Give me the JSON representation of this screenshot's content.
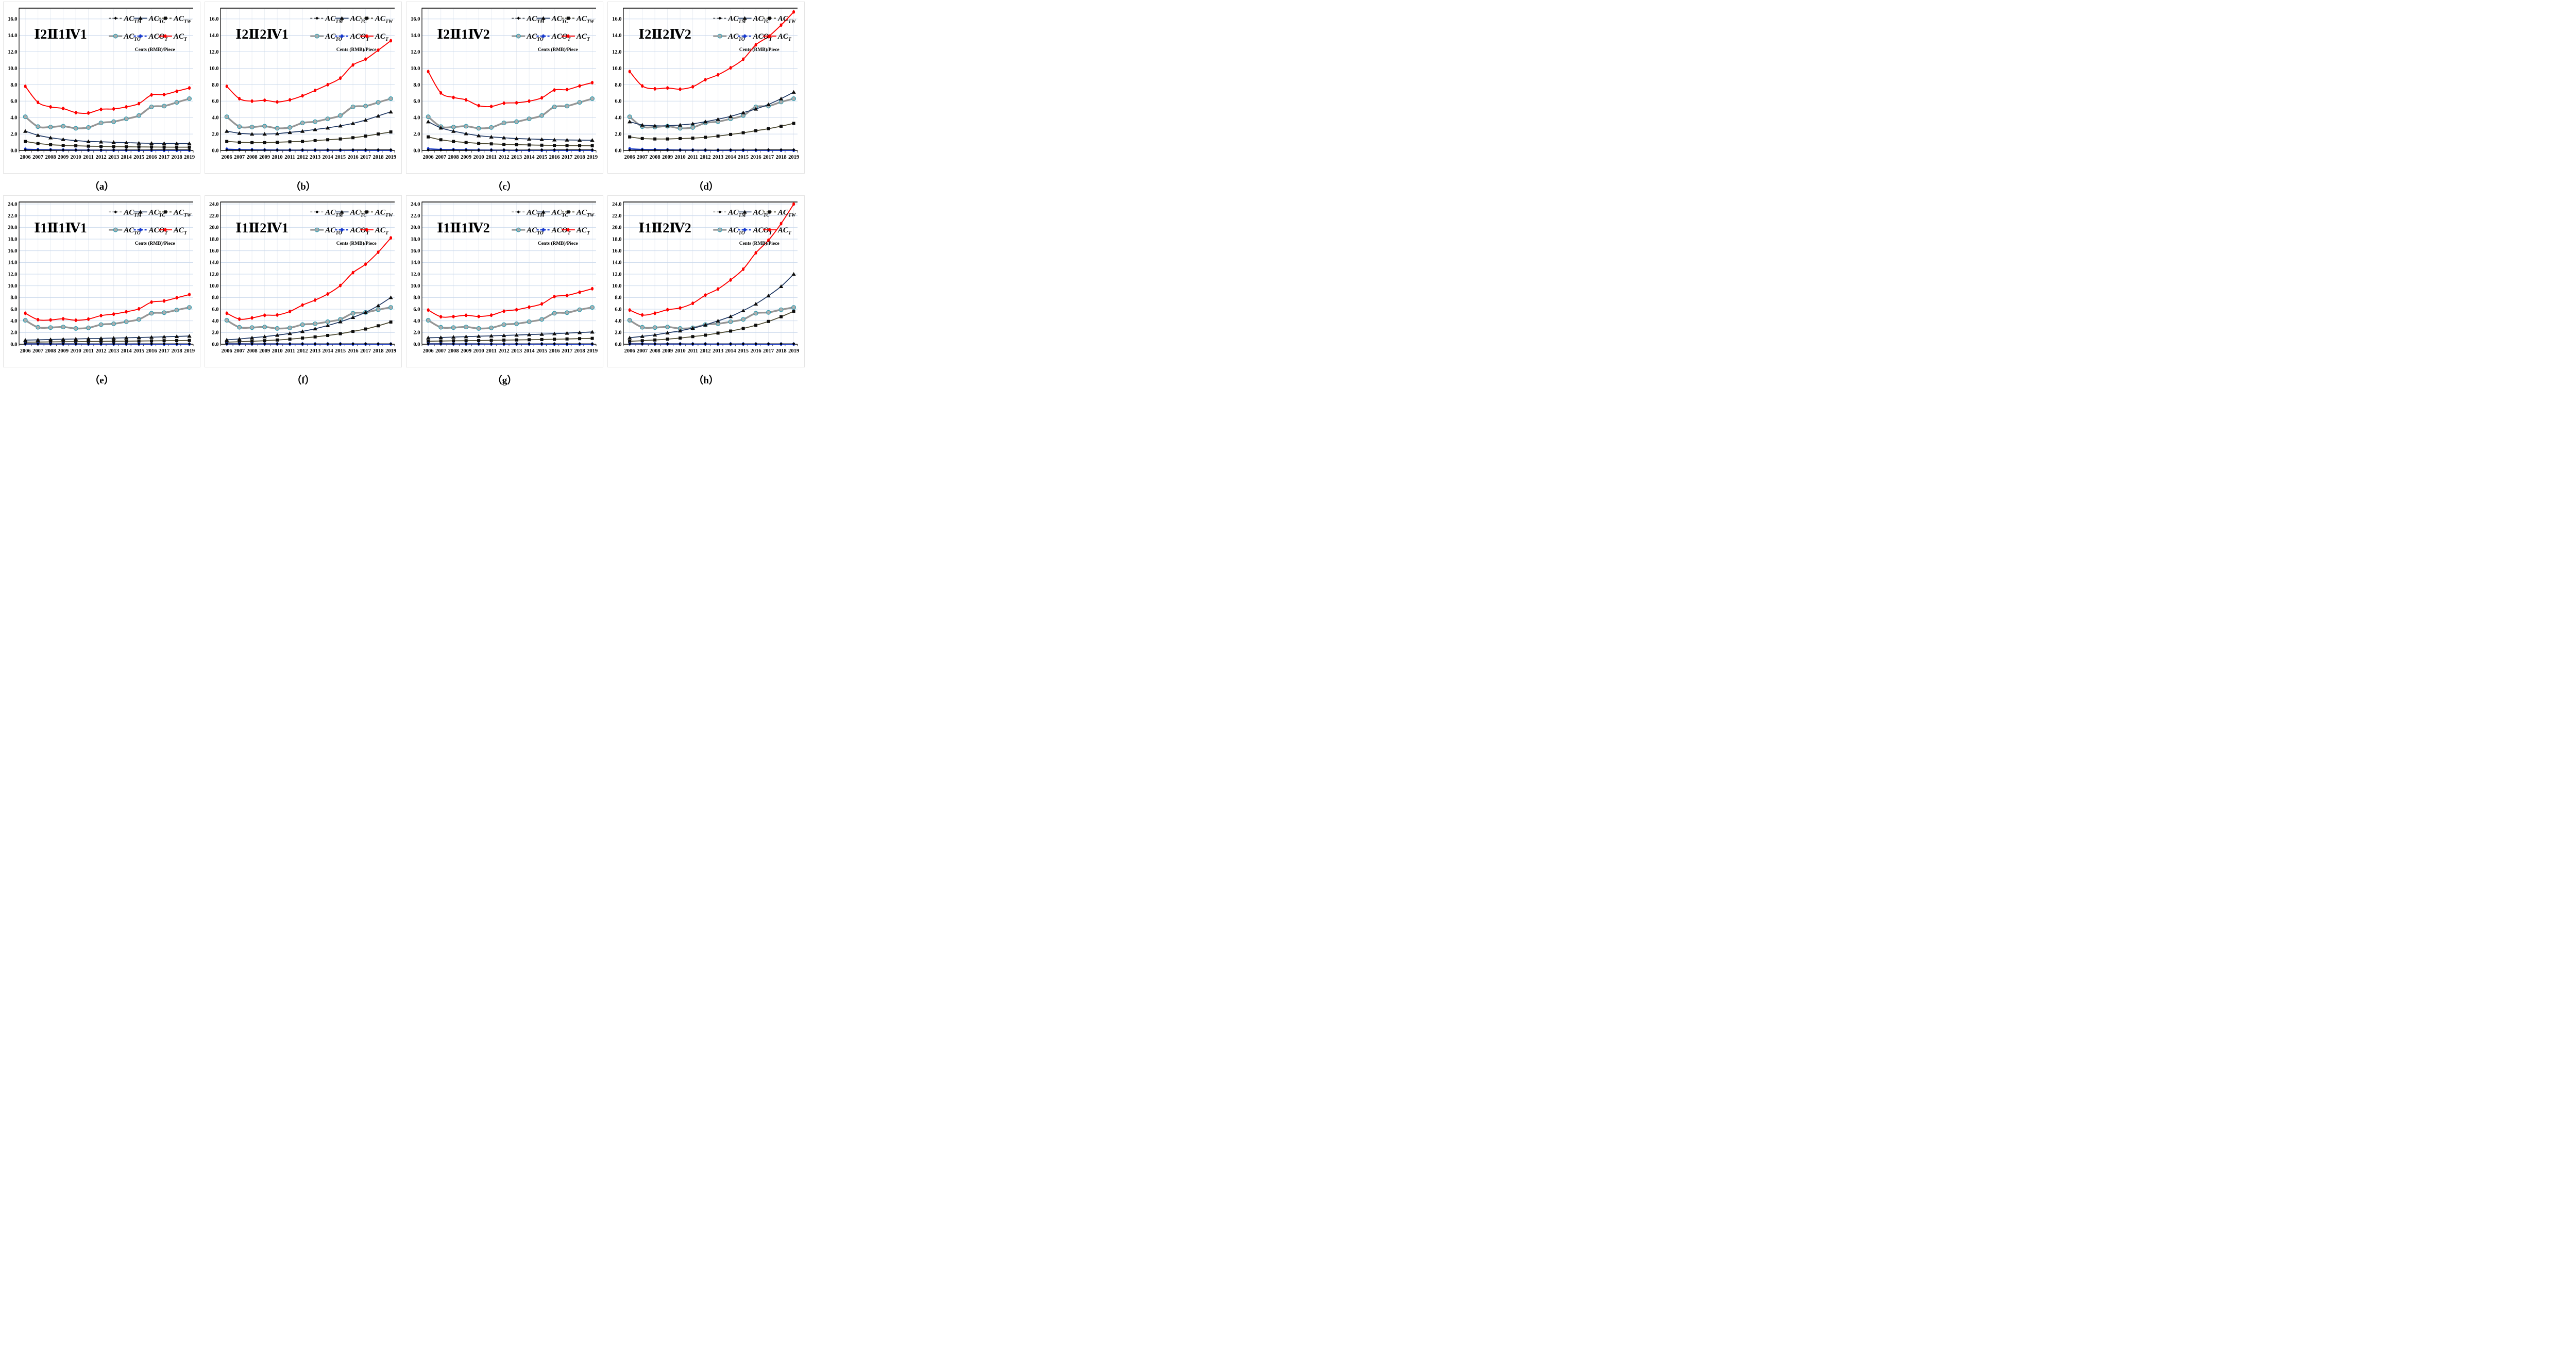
{
  "page": {
    "background": "#ffffff",
    "units_label": "Cents (RMB)/Piece"
  },
  "years": [
    "2006",
    "2007",
    "2008",
    "2009",
    "2010",
    "2011",
    "2012",
    "2013",
    "2014",
    "2015",
    "2016",
    "2017",
    "2018",
    "2019"
  ],
  "legend_order": [
    "AC_TM",
    "AC_TC",
    "AC_TW",
    "AC_TO",
    "ACO_T",
    "AC_T"
  ],
  "draw_order": [
    "AC_TO",
    "AC_TW",
    "AC_TC",
    "ACO_T",
    "AC_TM",
    "AC_T"
  ],
  "series_styles": {
    "AC_TM": {
      "base": "AC",
      "sub": "TM",
      "line_color": "#111111",
      "line_width": 1.2,
      "marker": "diamond",
      "marker_color": "#000000",
      "legend_dash": "4 3"
    },
    "AC_TC": {
      "base": "AC",
      "sub": "TC",
      "line_color": "#1f3864",
      "line_width": 1.7,
      "marker": "triangle",
      "marker_color": "#0d0d0d",
      "legend_dash": ""
    },
    "AC_TW": {
      "base": "AC",
      "sub": "TW",
      "line_color": "#4e4b33",
      "line_width": 1.8,
      "marker": "square",
      "marker_color": "#0d0d0d",
      "legend_dash": "4 3"
    },
    "AC_TO": {
      "base": "AC",
      "sub": "TO",
      "line_color": "#969696",
      "line_width": 3.4,
      "marker": "circle",
      "marker_color": "#adadad",
      "marker_stroke": "#2f9fb3",
      "legend_dash": ""
    },
    "ACO_T": {
      "base": "ACO",
      "sub": "T",
      "line_color": "#1437cf",
      "line_width": 2.2,
      "marker": "ellipse",
      "marker_color": "#1437cf",
      "legend_dash": "4 3"
    },
    "AC_T": {
      "base": "AC",
      "sub": "T",
      "line_color": "#ff0000",
      "line_width": 1.9,
      "marker": "ellipse",
      "marker_color": "#ff0000",
      "legend_dash": ""
    }
  },
  "grid_colors": {
    "h_grid": "#c9d8ec",
    "v_grid": "#e9edf3",
    "top_border": "#595959",
    "axis": "#000000"
  },
  "chart_data": [
    {
      "type": "line",
      "panel": "a",
      "caption": "（a）",
      "title": "Ⅰ2Ⅱ1Ⅳ1",
      "ylabel": "Cents (RMB)/Piece",
      "ylim": [
        0,
        17.3
      ],
      "ytick_max": 16,
      "ytick_step": 2,
      "grid": true,
      "legend_position": "top-right",
      "series": {
        "AC_TM": [
          0.05,
          0.05,
          0.05,
          0.05,
          0.05,
          0.05,
          0.06,
          0.06,
          0.07,
          0.07,
          0.08,
          0.09,
          0.09,
          0.09
        ],
        "AC_TC": [
          2.35,
          1.85,
          1.55,
          1.35,
          1.2,
          1.1,
          1.05,
          1.0,
          0.95,
          0.9,
          0.88,
          0.86,
          0.85,
          0.85
        ],
        "AC_TW": [
          1.1,
          0.85,
          0.7,
          0.62,
          0.57,
          0.52,
          0.5,
          0.47,
          0.45,
          0.43,
          0.42,
          0.41,
          0.4,
          0.4
        ],
        "AC_TO": [
          4.1,
          2.9,
          2.85,
          2.95,
          2.7,
          2.8,
          3.35,
          3.5,
          3.85,
          4.25,
          5.3,
          5.4,
          5.85,
          6.3
        ],
        "ACO_T": [
          0.15,
          0.1,
          0.08,
          0.06,
          0.05,
          0.04,
          0.03,
          0.03,
          0.03,
          0.02,
          0.02,
          0.02,
          0.02,
          0.02
        ],
        "AC_T": [
          7.8,
          5.85,
          5.3,
          5.1,
          4.6,
          4.55,
          5.0,
          5.05,
          5.3,
          5.7,
          6.75,
          6.8,
          7.2,
          7.6
        ]
      }
    },
    {
      "type": "line",
      "panel": "b",
      "caption": "（b）",
      "title": "Ⅰ2Ⅱ2Ⅳ1",
      "ylabel": "Cents (RMB)/Piece",
      "ylim": [
        0,
        17.3
      ],
      "ytick_max": 16,
      "ytick_step": 2,
      "grid": true,
      "legend_position": "top-right",
      "series": {
        "AC_TM": [
          0.05,
          0.05,
          0.05,
          0.05,
          0.05,
          0.05,
          0.06,
          0.06,
          0.07,
          0.07,
          0.08,
          0.09,
          0.09,
          0.09
        ],
        "AC_TC": [
          2.35,
          2.1,
          2.0,
          2.0,
          2.05,
          2.2,
          2.35,
          2.55,
          2.75,
          3.0,
          3.3,
          3.7,
          4.2,
          4.7
        ],
        "AC_TW": [
          1.1,
          1.0,
          0.95,
          0.95,
          1.0,
          1.05,
          1.1,
          1.2,
          1.3,
          1.4,
          1.55,
          1.75,
          2.0,
          2.25
        ],
        "AC_TO": [
          4.1,
          2.9,
          2.85,
          2.95,
          2.7,
          2.8,
          3.35,
          3.5,
          3.85,
          4.25,
          5.3,
          5.4,
          5.85,
          6.3
        ],
        "ACO_T": [
          0.15,
          0.1,
          0.08,
          0.06,
          0.05,
          0.04,
          0.03,
          0.03,
          0.03,
          0.02,
          0.02,
          0.02,
          0.02,
          0.02
        ],
        "AC_T": [
          7.8,
          6.3,
          6.0,
          6.1,
          5.9,
          6.15,
          6.65,
          7.3,
          8.0,
          8.8,
          10.4,
          11.1,
          12.2,
          13.35
        ]
      }
    },
    {
      "type": "line",
      "panel": "c",
      "caption": "（c）",
      "title": "Ⅰ2Ⅱ1Ⅳ2",
      "ylabel": "Cents (RMB)/Piece",
      "ylim": [
        0,
        17.3
      ],
      "ytick_max": 16,
      "ytick_step": 2,
      "grid": true,
      "legend_position": "top-right",
      "series": {
        "AC_TM": [
          0.05,
          0.05,
          0.05,
          0.05,
          0.05,
          0.05,
          0.06,
          0.06,
          0.07,
          0.07,
          0.08,
          0.09,
          0.09,
          0.09
        ],
        "AC_TC": [
          3.5,
          2.75,
          2.35,
          2.05,
          1.8,
          1.65,
          1.55,
          1.45,
          1.4,
          1.35,
          1.3,
          1.28,
          1.26,
          1.25
        ],
        "AC_TW": [
          1.65,
          1.3,
          1.1,
          0.97,
          0.87,
          0.8,
          0.75,
          0.71,
          0.67,
          0.64,
          0.62,
          0.6,
          0.59,
          0.58
        ],
        "AC_TO": [
          4.1,
          2.9,
          2.85,
          2.95,
          2.7,
          2.8,
          3.35,
          3.5,
          3.85,
          4.25,
          5.3,
          5.4,
          5.85,
          6.3
        ],
        "ACO_T": [
          0.2,
          0.12,
          0.1,
          0.08,
          0.05,
          0.04,
          0.03,
          0.02,
          0.02,
          0.02,
          0.02,
          0.02,
          0.02,
          0.02
        ],
        "AC_T": [
          9.6,
          7.0,
          6.45,
          6.15,
          5.45,
          5.35,
          5.75,
          5.8,
          6.0,
          6.4,
          7.35,
          7.4,
          7.85,
          8.25
        ]
      }
    },
    {
      "type": "line",
      "panel": "d",
      "caption": "（d）",
      "title": "Ⅰ2Ⅱ2Ⅳ2",
      "ylabel": "Cents (RMB)/Piece",
      "ylim": [
        0,
        17.3
      ],
      "ytick_max": 16,
      "ytick_step": 2,
      "grid": true,
      "legend_position": "top-right",
      "series": {
        "AC_TM": [
          0.05,
          0.05,
          0.05,
          0.05,
          0.05,
          0.05,
          0.06,
          0.06,
          0.07,
          0.07,
          0.08,
          0.09,
          0.09,
          0.09
        ],
        "AC_TC": [
          3.5,
          3.1,
          3.0,
          3.0,
          3.1,
          3.25,
          3.5,
          3.8,
          4.15,
          4.6,
          5.05,
          5.6,
          6.3,
          7.1
        ],
        "AC_TW": [
          1.65,
          1.45,
          1.4,
          1.4,
          1.45,
          1.5,
          1.6,
          1.75,
          1.95,
          2.15,
          2.4,
          2.65,
          2.95,
          3.3
        ],
        "AC_TO": [
          4.1,
          2.9,
          2.85,
          2.95,
          2.7,
          2.8,
          3.35,
          3.5,
          3.85,
          4.25,
          5.3,
          5.4,
          5.9,
          6.3
        ],
        "ACO_T": [
          0.2,
          0.12,
          0.1,
          0.08,
          0.05,
          0.04,
          0.03,
          0.02,
          0.02,
          0.02,
          0.02,
          0.02,
          0.02,
          0.02
        ],
        "AC_T": [
          9.6,
          7.85,
          7.5,
          7.6,
          7.45,
          7.75,
          8.6,
          9.2,
          10.05,
          11.1,
          12.85,
          13.85,
          15.25,
          16.85
        ]
      }
    },
    {
      "type": "line",
      "panel": "e",
      "caption": "（e）",
      "title": "Ⅰ1Ⅱ1Ⅳ1",
      "ylabel": "Cents (RMB)/Piece",
      "ylim": [
        0,
        24.35
      ],
      "ytick_max": 24,
      "ytick_step": 2,
      "grid": true,
      "legend_position": "top-right",
      "series": {
        "AC_TM": [
          0.05,
          0.05,
          0.05,
          0.05,
          0.05,
          0.05,
          0.05,
          0.05,
          0.06,
          0.06,
          0.07,
          0.07,
          0.07,
          0.07
        ],
        "AC_TC": [
          0.7,
          0.75,
          0.8,
          0.85,
          0.9,
          0.95,
          1.0,
          1.05,
          1.1,
          1.15,
          1.2,
          1.27,
          1.33,
          1.4
        ],
        "AC_TW": [
          0.35,
          0.37,
          0.4,
          0.42,
          0.44,
          0.46,
          0.48,
          0.5,
          0.52,
          0.55,
          0.57,
          0.6,
          0.62,
          0.65
        ],
        "AC_TO": [
          4.1,
          2.9,
          2.85,
          2.95,
          2.7,
          2.8,
          3.35,
          3.5,
          3.85,
          4.25,
          5.3,
          5.4,
          5.85,
          6.3
        ],
        "ACO_T": [
          0.05,
          0.05,
          0.04,
          0.04,
          0.04,
          0.03,
          0.03,
          0.03,
          0.03,
          0.03,
          0.02,
          0.02,
          0.02,
          0.02
        ],
        "AC_T": [
          5.3,
          4.2,
          4.15,
          4.35,
          4.1,
          4.3,
          4.9,
          5.15,
          5.55,
          6.05,
          7.2,
          7.4,
          7.95,
          8.5
        ]
      }
    },
    {
      "type": "line",
      "panel": "f",
      "caption": "（f）",
      "title": "Ⅰ1Ⅱ2Ⅳ1",
      "ylabel": "Cents (RMB)/Piece",
      "ylim": [
        0,
        24.35
      ],
      "ytick_max": 24,
      "ytick_step": 2,
      "grid": true,
      "legend_position": "top-right",
      "series": {
        "AC_TM": [
          0.05,
          0.05,
          0.05,
          0.05,
          0.05,
          0.05,
          0.05,
          0.05,
          0.06,
          0.06,
          0.07,
          0.07,
          0.07,
          0.07
        ],
        "AC_TC": [
          0.75,
          0.9,
          1.1,
          1.3,
          1.55,
          1.85,
          2.2,
          2.65,
          3.2,
          3.85,
          4.6,
          5.45,
          6.6,
          8.0
        ],
        "AC_TW": [
          0.35,
          0.42,
          0.5,
          0.6,
          0.72,
          0.87,
          1.05,
          1.25,
          1.5,
          1.8,
          2.2,
          2.6,
          3.15,
          3.8
        ],
        "AC_TO": [
          4.1,
          2.9,
          2.85,
          2.95,
          2.7,
          2.8,
          3.35,
          3.5,
          3.85,
          4.25,
          5.3,
          5.45,
          5.9,
          6.3
        ],
        "ACO_T": [
          0.05,
          0.05,
          0.04,
          0.04,
          0.04,
          0.03,
          0.03,
          0.03,
          0.03,
          0.03,
          0.02,
          0.02,
          0.02,
          0.02
        ],
        "AC_T": [
          5.3,
          4.3,
          4.5,
          4.95,
          5.0,
          5.6,
          6.7,
          7.55,
          8.6,
          10.05,
          12.25,
          13.7,
          15.75,
          18.2
        ]
      }
    },
    {
      "type": "line",
      "panel": "g",
      "caption": "（g）",
      "title": "Ⅰ1Ⅱ1Ⅳ2",
      "ylabel": "Cents (RMB)/Piece",
      "ylim": [
        0,
        24.35
      ],
      "ytick_max": 24,
      "ytick_step": 2,
      "grid": true,
      "legend_position": "top-right",
      "series": {
        "AC_TM": [
          0.05,
          0.05,
          0.05,
          0.05,
          0.05,
          0.05,
          0.05,
          0.05,
          0.06,
          0.06,
          0.07,
          0.07,
          0.07,
          0.07
        ],
        "AC_TC": [
          1.1,
          1.15,
          1.22,
          1.3,
          1.37,
          1.43,
          1.5,
          1.57,
          1.65,
          1.72,
          1.8,
          1.9,
          2.0,
          2.1
        ],
        "AC_TW": [
          0.5,
          0.55,
          0.58,
          0.6,
          0.63,
          0.66,
          0.7,
          0.73,
          0.77,
          0.8,
          0.85,
          0.9,
          0.95,
          1.0
        ],
        "AC_TO": [
          4.1,
          2.9,
          2.85,
          2.95,
          2.7,
          2.8,
          3.35,
          3.5,
          3.85,
          4.25,
          5.3,
          5.4,
          5.9,
          6.3
        ],
        "ACO_T": [
          0.05,
          0.05,
          0.04,
          0.04,
          0.04,
          0.03,
          0.03,
          0.03,
          0.03,
          0.03,
          0.02,
          0.02,
          0.02,
          0.02
        ],
        "AC_T": [
          5.85,
          4.7,
          4.73,
          4.95,
          4.75,
          4.97,
          5.65,
          5.9,
          6.35,
          6.9,
          8.15,
          8.35,
          8.9,
          9.5
        ]
      }
    },
    {
      "type": "line",
      "panel": "h",
      "caption": "（h）",
      "title": "Ⅰ1Ⅱ2Ⅳ2",
      "ylabel": "Cents (RMB)/Piece",
      "ylim": [
        0,
        24.35
      ],
      "ytick_max": 24,
      "ytick_step": 2,
      "grid": true,
      "legend_position": "top-right",
      "series": {
        "AC_TM": [
          0.05,
          0.05,
          0.05,
          0.05,
          0.05,
          0.05,
          0.05,
          0.05,
          0.06,
          0.06,
          0.07,
          0.07,
          0.07,
          0.07
        ],
        "AC_TC": [
          1.1,
          1.35,
          1.6,
          1.95,
          2.3,
          2.75,
          3.3,
          4.0,
          4.75,
          5.75,
          6.9,
          8.3,
          9.9,
          12.0
        ],
        "AC_TW": [
          0.5,
          0.6,
          0.72,
          0.87,
          1.05,
          1.3,
          1.55,
          1.9,
          2.25,
          2.7,
          3.25,
          3.9,
          4.7,
          5.65
        ],
        "AC_TO": [
          4.1,
          2.9,
          2.85,
          2.95,
          2.7,
          2.8,
          3.35,
          3.5,
          3.85,
          4.25,
          5.3,
          5.45,
          5.9,
          6.3
        ],
        "ACO_T": [
          0.05,
          0.05,
          0.04,
          0.04,
          0.04,
          0.03,
          0.03,
          0.03,
          0.03,
          0.03,
          0.02,
          0.02,
          0.02,
          0.02
        ],
        "AC_T": [
          5.85,
          5.0,
          5.3,
          5.9,
          6.2,
          7.0,
          8.4,
          9.45,
          11.0,
          12.85,
          15.65,
          17.8,
          20.65,
          24.0
        ]
      }
    }
  ]
}
